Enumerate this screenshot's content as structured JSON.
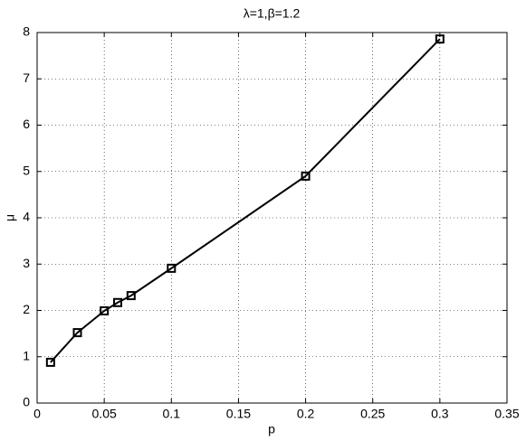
{
  "chart_data": {
    "type": "line",
    "title": "λ=1,β=1.2",
    "x_label": "p",
    "y_label": "μ",
    "x": [
      0.01,
      0.03,
      0.05,
      0.06,
      0.07,
      0.1,
      0.2,
      0.3
    ],
    "values": [
      0.88,
      1.52,
      1.99,
      2.17,
      2.32,
      2.91,
      4.9,
      7.86
    ],
    "color": "#000000",
    "marker": "square",
    "xlim": [
      0,
      0.35
    ],
    "xticks": [
      0,
      0.05,
      0.1,
      0.15,
      0.2,
      0.25,
      0.3,
      0.35
    ],
    "ylim": [
      0,
      8
    ],
    "yticks": [
      0,
      1,
      2,
      3,
      4,
      5,
      6,
      7,
      8
    ],
    "grid": true
  }
}
